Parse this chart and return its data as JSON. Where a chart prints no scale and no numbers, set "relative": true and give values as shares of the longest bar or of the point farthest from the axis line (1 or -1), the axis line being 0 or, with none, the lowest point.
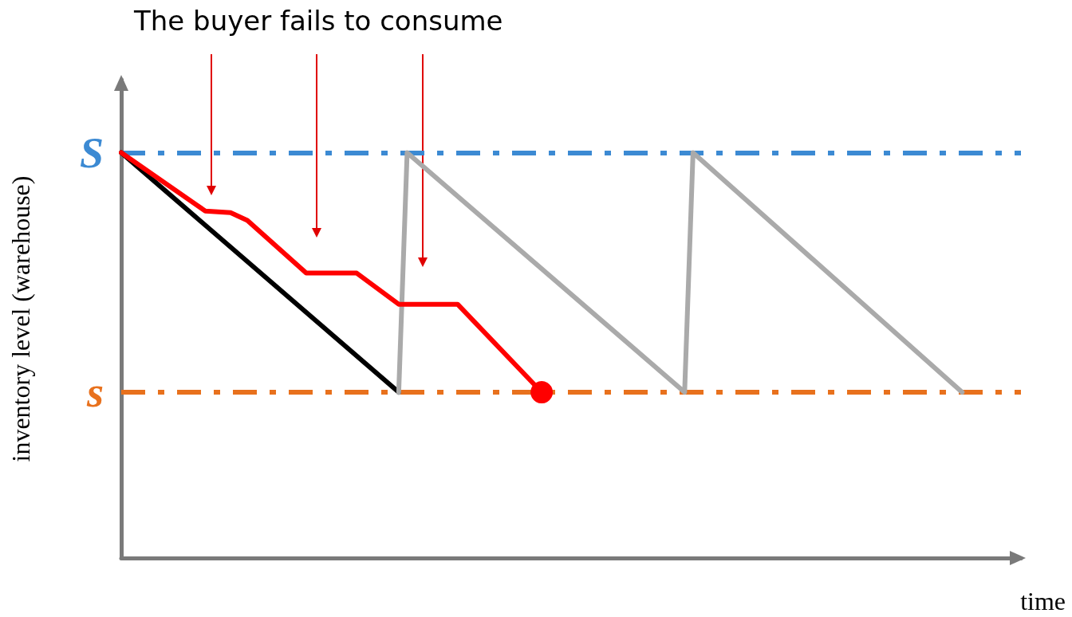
{
  "chart_data": {
    "type": "line",
    "relative": true,
    "title": "The buyer fails to consume",
    "xlabel": "time",
    "ylabel": "inventory level (warehouse)",
    "marker": "none",
    "line_style": "solid",
    "categories": [
      null,
      null,
      null,
      null,
      null,
      null,
      null,
      null,
      null,
      null,
      null,
      null,
      null,
      null,
      null,
      null,
      null,
      null,
      null,
      null,
      null,
      null,
      null,
      null,
      null,
      null,
      null,
      null,
      null,
      null,
      null,
      null,
      null,
      null,
      null,
      null,
      null,
      null,
      null,
      null,
      null,
      null,
      null,
      null,
      null,
      null,
      null,
      null,
      null,
      null,
      null,
      null,
      null,
      null,
      null,
      null,
      null,
      null,
      null,
      null,
      null,
      null,
      null,
      null,
      null,
      null,
      null,
      null,
      null,
      null,
      null,
      null,
      null,
      null,
      null,
      null,
      null,
      null,
      null,
      null,
      null,
      null,
      null,
      null,
      null,
      null,
      null,
      null,
      null,
      null,
      null,
      null,
      null,
      null,
      null,
      null,
      null,
      null,
      null,
      null,
      null,
      null,
      null,
      null,
      null,
      null,
      null,
      null
    ],
    "series": [
      {
        "color": "#000000",
        "values": [
          1,
          null,
          null,
          null,
          null,
          null,
          null,
          null,
          null,
          null,
          null,
          null,
          null,
          null,
          null,
          null,
          null,
          null,
          null,
          null,
          null,
          null,
          null,
          null,
          null,
          null,
          null,
          null,
          null,
          null,
          null,
          null,
          null,
          0.409,
          null,
          null,
          null,
          null,
          null,
          null,
          null,
          null,
          null,
          null,
          null,
          null,
          null,
          null,
          null,
          null,
          null,
          null,
          null,
          null,
          null,
          null,
          null,
          null,
          null,
          null,
          null,
          null,
          null,
          null,
          null,
          null,
          null,
          null,
          null,
          null,
          null,
          null,
          null,
          null,
          null,
          null,
          null,
          null,
          null,
          null,
          null,
          null,
          null,
          null,
          null,
          null,
          null,
          null,
          null,
          null,
          null,
          null,
          null,
          null,
          null,
          null,
          null,
          null,
          null,
          null,
          null,
          null,
          null,
          null,
          null,
          null,
          null,
          null
        ]
      },
      {
        "color": "#aaaaaa",
        "values": [
          null,
          null,
          null,
          null,
          null,
          null,
          null,
          null,
          null,
          null,
          null,
          null,
          null,
          null,
          null,
          null,
          null,
          null,
          null,
          null,
          null,
          null,
          null,
          null,
          null,
          null,
          null,
          null,
          null,
          null,
          null,
          null,
          null,
          0.409,
          1,
          null,
          null,
          null,
          null,
          null,
          null,
          null,
          null,
          null,
          null,
          null,
          null,
          null,
          null,
          null,
          null,
          null,
          null,
          null,
          null,
          null,
          null,
          null,
          null,
          null,
          null,
          null,
          null,
          null,
          null,
          null,
          null,
          0.409,
          1,
          null,
          null,
          null,
          null,
          null,
          null,
          null,
          null,
          null,
          null,
          null,
          null,
          null,
          null,
          null,
          null,
          null,
          null,
          null,
          null,
          null,
          null,
          null,
          null,
          null,
          null,
          null,
          null,
          null,
          null,
          null,
          0.409,
          null,
          null,
          null,
          null,
          null,
          null,
          null
        ]
      },
      {
        "color": "#ff0000",
        "values": [
          1,
          null,
          null,
          null,
          null,
          null,
          null,
          null,
          null,
          null,
          0.856,
          null,
          null,
          0.852,
          null,
          0.833,
          null,
          null,
          null,
          null,
          null,
          null,
          0.703,
          null,
          null,
          null,
          null,
          null,
          0.703,
          null,
          null,
          null,
          null,
          0.626,
          null,
          null,
          null,
          null,
          null,
          null,
          0.626,
          null,
          null,
          null,
          null,
          null,
          null,
          null,
          null,
          null,
          0.409,
          null,
          null,
          null,
          null,
          null,
          null,
          null,
          null,
          null,
          null,
          null,
          null,
          null,
          null,
          null,
          null,
          null,
          null,
          null,
          null,
          null,
          null,
          null,
          null,
          null,
          null,
          null,
          null,
          null,
          null,
          null,
          null,
          null,
          null,
          null,
          null,
          null,
          null,
          null,
          null,
          null,
          null,
          null,
          null,
          null,
          null,
          null,
          null,
          null,
          null,
          null,
          null,
          null,
          null,
          null,
          null,
          null
        ]
      },
      {
        "color": "#ff0000",
        "marker": "circle",
        "values": [
          null,
          null,
          null,
          null,
          null,
          null,
          null,
          null,
          null,
          null,
          null,
          null,
          null,
          null,
          null,
          null,
          null,
          null,
          null,
          null,
          null,
          null,
          null,
          null,
          null,
          null,
          null,
          null,
          null,
          null,
          null,
          null,
          null,
          null,
          null,
          null,
          null,
          null,
          null,
          null,
          null,
          null,
          null,
          null,
          null,
          null,
          null,
          null,
          null,
          null,
          0.409,
          null,
          null,
          null,
          null,
          null,
          null,
          null,
          null,
          null,
          null,
          null,
          null,
          null,
          null,
          null,
          null,
          null,
          null,
          null,
          null,
          null,
          null,
          null,
          null,
          null,
          null,
          null,
          null,
          null,
          null,
          null,
          null,
          null,
          null,
          null,
          null,
          null,
          null,
          null,
          null,
          null,
          null,
          null,
          null,
          null,
          null,
          null,
          null,
          null,
          null,
          null,
          null,
          null,
          null,
          null,
          null,
          null
        ]
      }
    ],
    "ref_lines": [
      {
        "axis": "y",
        "value": 1,
        "label": "S",
        "color": "#3c8ad3",
        "line_style": "dashed"
      },
      {
        "axis": "y",
        "value": 0.409,
        "label": "s",
        "color": "#e8711d",
        "line_style": "dashed"
      }
    ]
  }
}
